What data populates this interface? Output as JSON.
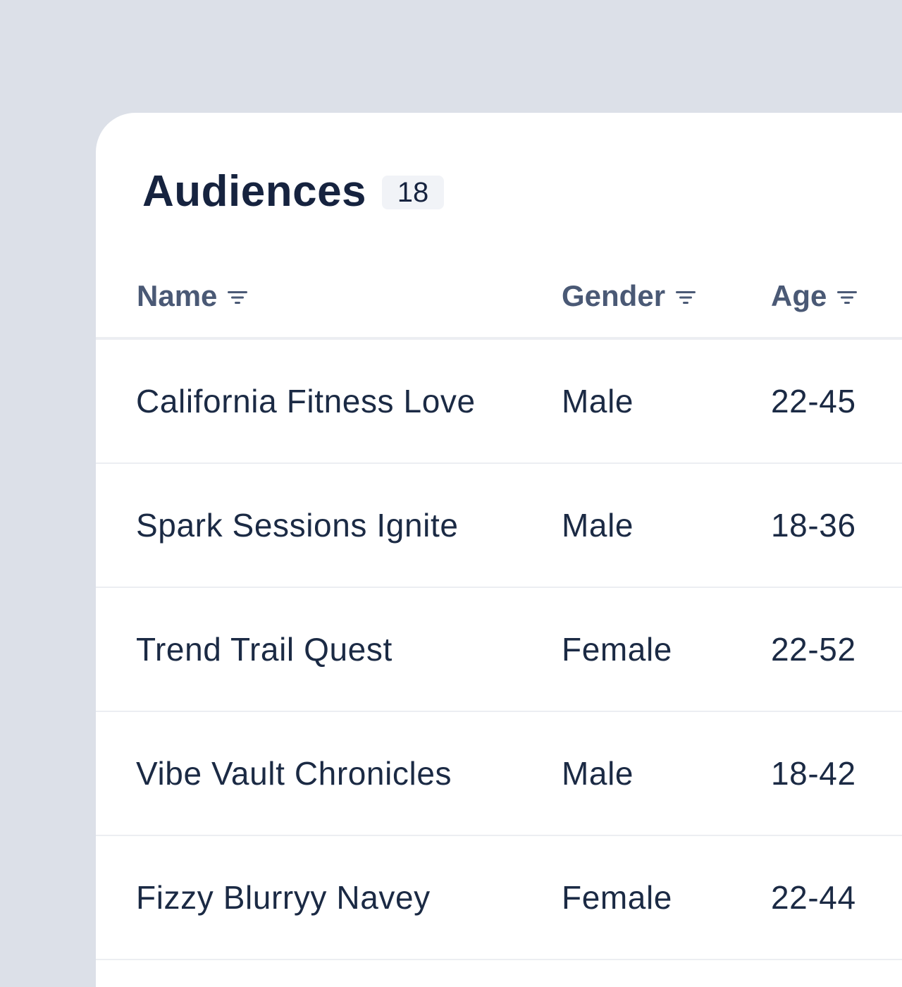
{
  "audiences": {
    "title": "Audiences",
    "count": "18",
    "columns": {
      "name": "Name",
      "gender": "Gender",
      "age": "Age"
    },
    "filter_icon": "filter-icon",
    "rows": [
      {
        "name": "California Fitness Love",
        "gender": "Male",
        "age": "22-45"
      },
      {
        "name": "Spark Sessions Ignite",
        "gender": "Male",
        "age": "18-36"
      },
      {
        "name": "Trend Trail Quest",
        "gender": "Female",
        "age": "22-52"
      },
      {
        "name": "Vibe Vault Chronicles",
        "gender": "Male",
        "age": "18-42"
      },
      {
        "name": "Fizzy Blurryy Navey",
        "gender": "Female",
        "age": "22-44"
      }
    ]
  },
  "colors": {
    "background": "#dce0e8",
    "panel": "#ffffff",
    "title": "#16233f",
    "header_text": "#4a5975",
    "cell_text": "#1b2a44",
    "divider": "#eceef2",
    "badge_bg": "#f1f3f7"
  }
}
